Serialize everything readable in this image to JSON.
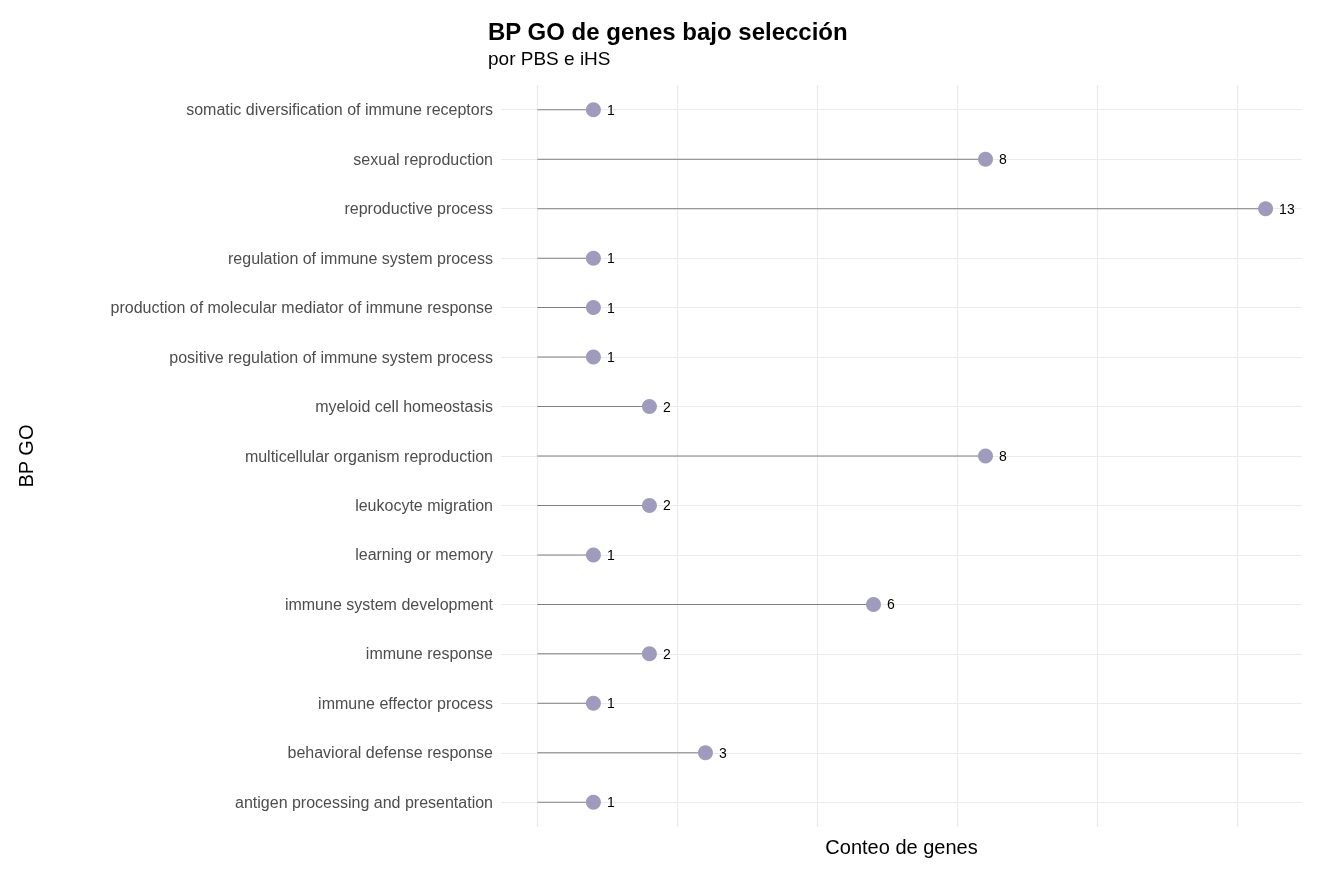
{
  "chart_data": {
    "type": "lollipop",
    "orientation": "horizontal",
    "title": "BP GO de genes bajo selección",
    "subtitle": "por PBS e iHS",
    "xlabel": "Conteo de genes",
    "ylabel": "BP GO",
    "categories": [
      "somatic diversification of immune receptors",
      "sexual reproduction",
      "reproductive process",
      "regulation of immune system process",
      "production of molecular mediator of immune response",
      "positive regulation of immune system process",
      "myeloid cell homeostasis",
      "multicellular organism reproduction",
      "leukocyte migration",
      "learning or memory",
      "immune system development",
      "immune response",
      "immune effector process",
      "behavioral defense response",
      "antigen processing and presentation"
    ],
    "values": [
      1,
      8,
      13,
      1,
      1,
      1,
      2,
      8,
      2,
      1,
      6,
      2,
      1,
      3,
      1
    ],
    "color": "#9f9bbd",
    "xlim": [
      -0.65,
      13.65
    ],
    "xticks": [
      {
        "value": 0,
        "label": null
      },
      {
        "value": 2.5,
        "label": null
      },
      {
        "value": 5,
        "label": null
      },
      {
        "value": 7.5,
        "label": null
      },
      {
        "value": 10,
        "label": null
      },
      {
        "value": 12.5,
        "label": null
      }
    ],
    "tick_labels": "y",
    "grid": true,
    "data_labels": true,
    "marker": "circle"
  }
}
